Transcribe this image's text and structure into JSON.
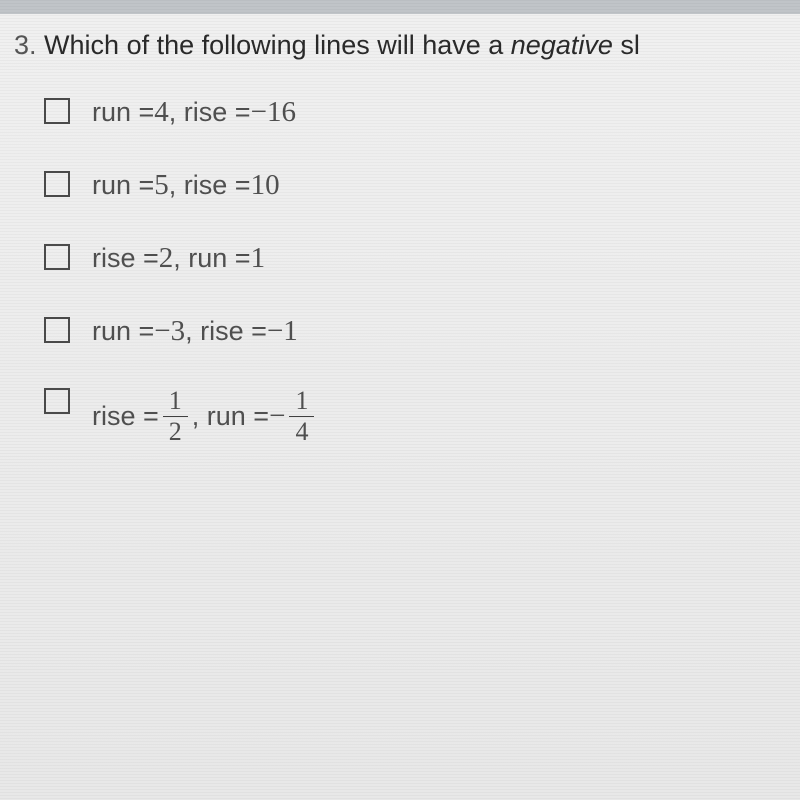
{
  "question": {
    "number": "3.",
    "text_before": "Which of the following lines will have a ",
    "emphasis": "negative",
    "text_after": " sl"
  },
  "options": [
    {
      "parts": [
        {
          "type": "text",
          "value": "run = "
        },
        {
          "type": "num",
          "value": "4"
        },
        {
          "type": "text",
          "value": ", rise = "
        },
        {
          "type": "minus",
          "value": "−"
        },
        {
          "type": "num",
          "value": "16"
        }
      ]
    },
    {
      "parts": [
        {
          "type": "text",
          "value": "run = "
        },
        {
          "type": "num",
          "value": "5"
        },
        {
          "type": "text",
          "value": ", rise = "
        },
        {
          "type": "num",
          "value": "10"
        }
      ]
    },
    {
      "parts": [
        {
          "type": "text",
          "value": "rise = "
        },
        {
          "type": "num",
          "value": "2"
        },
        {
          "type": "text",
          "value": ", run = "
        },
        {
          "type": "num",
          "value": "1"
        }
      ]
    },
    {
      "parts": [
        {
          "type": "text",
          "value": "run = "
        },
        {
          "type": "minus",
          "value": "−"
        },
        {
          "type": "num",
          "value": "3"
        },
        {
          "type": "text",
          "value": ", rise = "
        },
        {
          "type": "minus",
          "value": "−"
        },
        {
          "type": "num",
          "value": "1"
        }
      ]
    },
    {
      "has_fraction": true,
      "parts": [
        {
          "type": "text",
          "value": "rise = "
        },
        {
          "type": "fraction",
          "num": "1",
          "den": "2"
        },
        {
          "type": "text",
          "value": ", run = "
        },
        {
          "type": "minus",
          "value": "−"
        },
        {
          "type": "fraction",
          "num": "1",
          "den": "4"
        }
      ]
    }
  ],
  "styling": {
    "body_width": 800,
    "body_height": 800,
    "question_fontsize": 27,
    "option_fontsize": 27,
    "checkbox_size": 26,
    "checkbox_border_color": "#4a4a4a",
    "text_color": "#505050",
    "question_color": "#2a2a2a",
    "background_color": "#e8e8e8"
  }
}
